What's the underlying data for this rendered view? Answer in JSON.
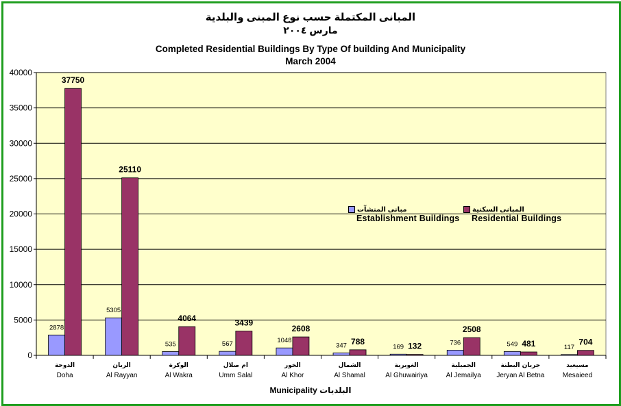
{
  "titles": {
    "arabic_main": "المبانى المكتملة حسب نوع المبنى والبلدية",
    "arabic_date": "مارس ٢٠٠٤",
    "english_main": "Completed Residential Buildings By  Type Of building And Municipality",
    "english_date": "March 2004"
  },
  "colors": {
    "frame": "#1f9e1f",
    "plot_bg": "#ffffcc",
    "establishment": "#9999ff",
    "residential": "#993366"
  },
  "chart_data": {
    "type": "bar",
    "title": "Completed Residential Buildings By  Type Of building And Municipality",
    "subtitle": "March 2004",
    "xlabel": "Municipality البلديات",
    "ylabel": "",
    "ylim": [
      0,
      40000
    ],
    "yticks": [
      0,
      5000,
      10000,
      15000,
      20000,
      25000,
      30000,
      35000,
      40000
    ],
    "grid": true,
    "legend_position": "center",
    "categories": [
      {
        "ar": "الدوحة",
        "en": "Doha"
      },
      {
        "ar": "الريان",
        "en": "Al Rayyan"
      },
      {
        "ar": "الوكرة",
        "en": "Al Wakra"
      },
      {
        "ar": "ام صلال",
        "en": "Umm Salal"
      },
      {
        "ar": "الخور",
        "en": "Al Khor"
      },
      {
        "ar": "الشمال",
        "en": "Al Shamal"
      },
      {
        "ar": "الغويرية",
        "en": "Al Ghuwairiya"
      },
      {
        "ar": "الجميلية",
        "en": "Al Jemailya"
      },
      {
        "ar": "جريان البطنة",
        "en": "Jeryan Al Betna"
      },
      {
        "ar": "مسيعيد",
        "en": "Mesaieed"
      }
    ],
    "series": [
      {
        "name": "Establishment Buildings",
        "name_ar": "مبانى المنشآت",
        "values": [
          2878,
          5305,
          535,
          567,
          1048,
          347,
          169,
          736,
          549,
          117
        ]
      },
      {
        "name": "Residential Buildings",
        "name_ar": "المبانى السكنية",
        "values": [
          37750,
          25110,
          4064,
          3439,
          2608,
          788,
          132,
          2508,
          481,
          704
        ]
      }
    ]
  }
}
